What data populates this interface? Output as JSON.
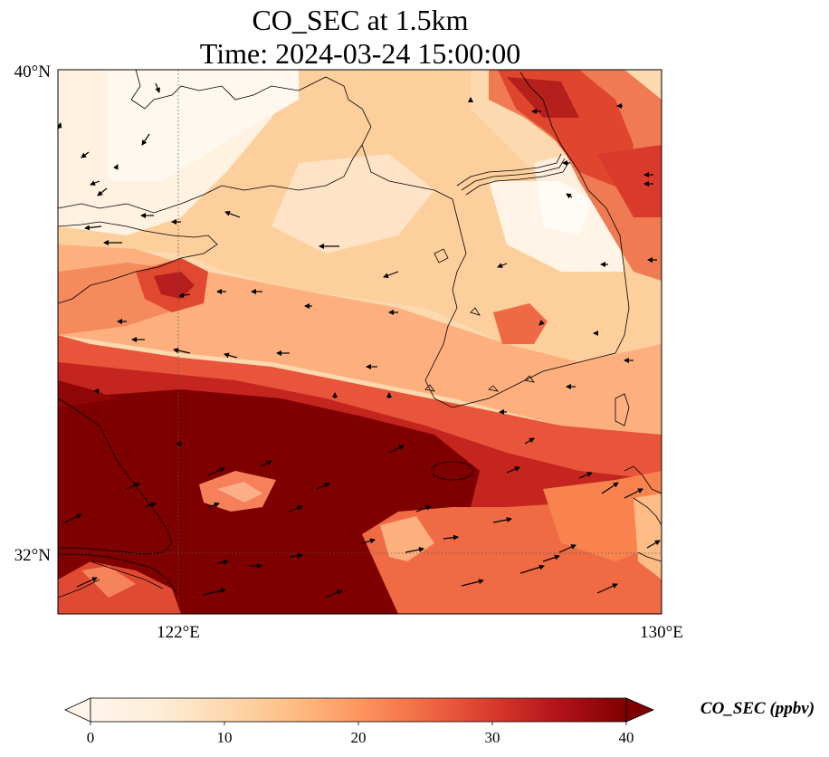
{
  "title": {
    "line1": "CO_SEC at 1.5km",
    "line2": "Time: 2024-03-24 15:00:00"
  },
  "map": {
    "lat_range": [
      31.0,
      40.0
    ],
    "lon_range": [
      120.0,
      130.0
    ],
    "lat_ticks": [
      {
        "value": 40,
        "label": "40°N"
      },
      {
        "value": 32,
        "label": "32°N"
      }
    ],
    "lon_ticks": [
      {
        "value": 122,
        "label": "122°E"
      },
      {
        "value": 130,
        "label": "130°E"
      }
    ],
    "gridlines": "dotted",
    "field_note_colors": [
      "#fff5eb",
      "#fee6ce",
      "#fdd0a2",
      "#fdae6b",
      "#fd8d3c",
      "#f16913",
      "#d94801",
      "#a63603",
      "#7f2704"
    ]
  },
  "colorbar": {
    "label": "CO_SEC (ppbv)",
    "min": 0,
    "max": 40,
    "ticks": [
      {
        "value": 0,
        "label": "0"
      },
      {
        "value": 10,
        "label": "10"
      },
      {
        "value": 20,
        "label": "20"
      },
      {
        "value": 30,
        "label": "30"
      },
      {
        "value": 40,
        "label": "40"
      }
    ],
    "extend": "both",
    "colors": [
      "#fff5eb",
      "#feedd8",
      "#fdd9b0",
      "#fdbe84",
      "#fc9660",
      "#f06a44",
      "#d83a2d",
      "#b01319",
      "#7f0000"
    ]
  }
}
